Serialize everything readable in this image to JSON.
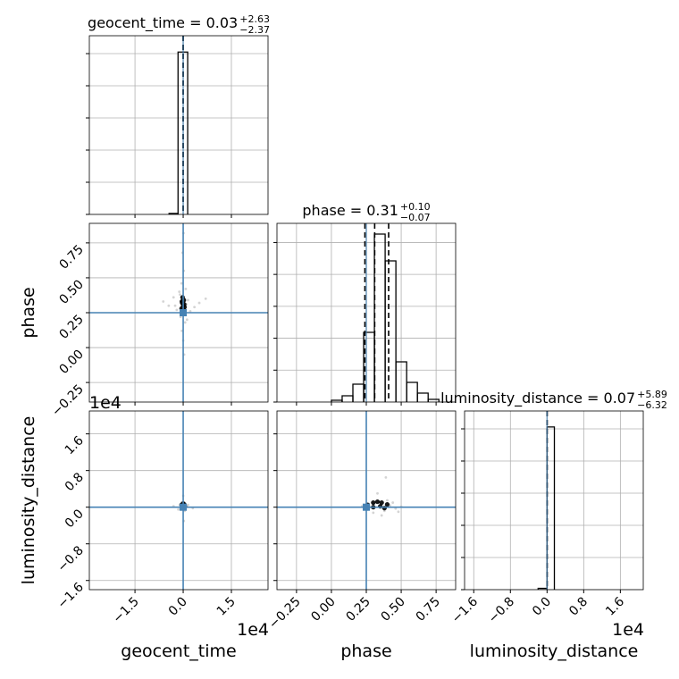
{
  "chart_data": [
    {
      "type": "histogram",
      "title": "geocent_time = 0.03",
      "title_upper": "+2.63",
      "title_lower": "−2.37",
      "bins": [
        -0.44,
        -0.16,
        0.14
      ],
      "counts": [
        30,
        5050
      ],
      "ylim": [
        0,
        5556
      ],
      "yticks": [
        0,
        1000,
        2000,
        3000,
        4000,
        5000
      ],
      "quantiles": [
        -0.000234,
        3e-06,
        0.000266
      ],
      "truth": 0,
      "truth_color": "#4682b4",
      "color": "#000000",
      "grid": true
    },
    {
      "type": "scatter",
      "ylabel": "phase",
      "ylim": [
        -0.39,
        0.89
      ],
      "yticks": [
        {
          "value": -0.25,
          "label": "−0.25"
        },
        {
          "value": 0,
          "label": "0.00"
        },
        0.25,
        {
          "value": 0.5,
          "label": "0.50"
        },
        0.75
      ],
      "points": [
        {
          "color": "#b8b8b8",
          "x": [
            -0.62,
            -0.45,
            -0.3,
            -0.2,
            -0.12,
            -0.08,
            -0.05,
            0.02,
            0.06,
            0.1,
            0.15,
            0.22,
            0.35,
            0.5,
            0.7,
            -0.02,
            0.0,
            0.03,
            -0.04,
            0.01,
            0.08,
            -0.1,
            0.12,
            -0.25
          ],
          "y": [
            0.33,
            0.3,
            0.36,
            0.27,
            0.4,
            0.22,
            0.46,
            0.55,
            0.18,
            0.31,
            0.34,
            0.26,
            0.29,
            0.32,
            0.35,
            0.68,
            0.05,
            -0.05,
            0.12,
            0.82,
            0.42,
            0.38,
            0.2,
            0.3
          ]
        },
        {
          "color": "#000000",
          "x": [
            -0.05,
            -0.03,
            0,
            0.02,
            0.04,
            -0.02,
            0.01,
            0.03,
            -0.04,
            0
          ],
          "y": [
            0.28,
            0.32,
            0.3,
            0.34,
            0.29,
            0.36,
            0.27,
            0.31,
            0.33,
            0.25
          ]
        }
      ],
      "truth_x": 0,
      "truth_y": 0.25,
      "truth_color": "#4682b4",
      "grid": true
    },
    {
      "type": "histogram",
      "title": "phase = 0.31",
      "title_upper": "+0.10",
      "title_lower": "−0.07",
      "bins": [
        0,
        0.077,
        0.154,
        0.231,
        0.308,
        0.385,
        0.462,
        0.539,
        0.616,
        0.693,
        0.77
      ],
      "counts": [
        28,
        98,
        280,
        1092,
        2632,
        2212,
        630,
        308,
        140,
        42
      ],
      "ylim": [
        0,
        2800
      ],
      "yticks": [
        0,
        500,
        1000,
        1500,
        2000,
        2500
      ],
      "quantiles": [
        0.24,
        0.31,
        0.41
      ],
      "truth": 0.25,
      "truth_color": "#4682b4",
      "color": "#000000",
      "grid": true
    },
    {
      "type": "scatter",
      "xlabel": "geocent_time",
      "x_offset_label": "1e4",
      "xlim": [
        -2.92,
        2.64
      ],
      "xticks": [
        {
          "value": -1.5,
          "label": "−1.5"
        },
        {
          "value": 0,
          "label": "0.0"
        },
        1.5
      ],
      "ylabel": "luminosity_distance",
      "y_offset_label": "1e4",
      "ylim": [
        -1.8,
        2.1
      ],
      "yticks": [
        {
          "value": -1.6,
          "label": "−1.6"
        },
        {
          "value": -0.8,
          "label": "−0.8"
        },
        {
          "value": 0,
          "label": "0.0"
        },
        0.8,
        1.6
      ],
      "points": [
        {
          "color": "#b8b8b8",
          "x": [
            -0.3,
            -0.15,
            -0.05,
            0.05,
            0.15,
            0.3,
            0.0,
            0.02,
            -0.02,
            0.1
          ],
          "y": [
            0.02,
            -0.05,
            0.1,
            -0.08,
            0.05,
            -0.02,
            0.25,
            -0.3,
            0.06,
            0.0
          ]
        },
        {
          "color": "#000000",
          "x": [
            -0.05,
            0,
            0.05,
            -0.02,
            0.03
          ],
          "y": [
            0.05,
            0.08,
            0.02,
            -0.02,
            0.06
          ]
        }
      ],
      "truth_x": 0,
      "truth_y": 0,
      "truth_color": "#4682b4",
      "grid": true
    },
    {
      "type": "scatter",
      "xlabel": "phase",
      "xlim": [
        -0.39,
        0.89
      ],
      "xticks": [
        {
          "value": -0.25,
          "label": "−0.25"
        },
        {
          "value": 0,
          "label": "0.00"
        },
        0.25,
        {
          "value": 0.5,
          "label": "0.50"
        },
        0.75
      ],
      "points": [
        {
          "color": "#b8b8b8",
          "x": [
            0.22,
            0.26,
            0.3,
            0.34,
            0.38,
            0.42,
            0.46,
            0.5,
            0.3,
            0.36,
            0.4,
            0.44,
            0.28,
            0.33,
            0.48,
            0.39
          ],
          "y": [
            0.02,
            -0.05,
            0.06,
            0.12,
            -0.08,
            0.04,
            -0.03,
            0.01,
            -0.12,
            -0.18,
            0.15,
            0.1,
            0.0,
            0.3,
            -0.1,
            0.65
          ]
        },
        {
          "color": "#000000",
          "x": [
            0.26,
            0.3,
            0.33,
            0.36,
            0.4,
            0.3,
            0.35,
            0.38
          ],
          "y": [
            0.05,
            0.1,
            0.12,
            0.1,
            0.06,
            0.0,
            0.02,
            -0.02
          ]
        }
      ],
      "truth_x": 0.25,
      "truth_y": 0,
      "truth_color": "#4682b4",
      "grid": true
    },
    {
      "type": "histogram",
      "title": "luminosity_distance = 0.07",
      "title_upper": "+5.89",
      "title_lower": "−6.32",
      "xlabel": "luminosity_distance",
      "x_offset_label": "1e4",
      "xlim": [
        -1.8,
        2.1
      ],
      "xticks": [
        {
          "value": -1.6,
          "label": "−1.6"
        },
        {
          "value": -0.8,
          "label": "−0.8"
        },
        {
          "value": 0,
          "label": "0.0"
        },
        0.8,
        1.6
      ],
      "bins": [
        -0.195,
        0,
        0.16
      ],
      "counts": [
        40,
        5060
      ],
      "ylim": [
        0,
        5556
      ],
      "yticks": [
        0,
        1000,
        2000,
        3000,
        4000,
        5000
      ],
      "quantiles": [
        -0.000625,
        7e-06,
        0.000596
      ],
      "truth": 0,
      "truth_color": "#4682b4",
      "color": "#000000",
      "grid": true
    }
  ]
}
